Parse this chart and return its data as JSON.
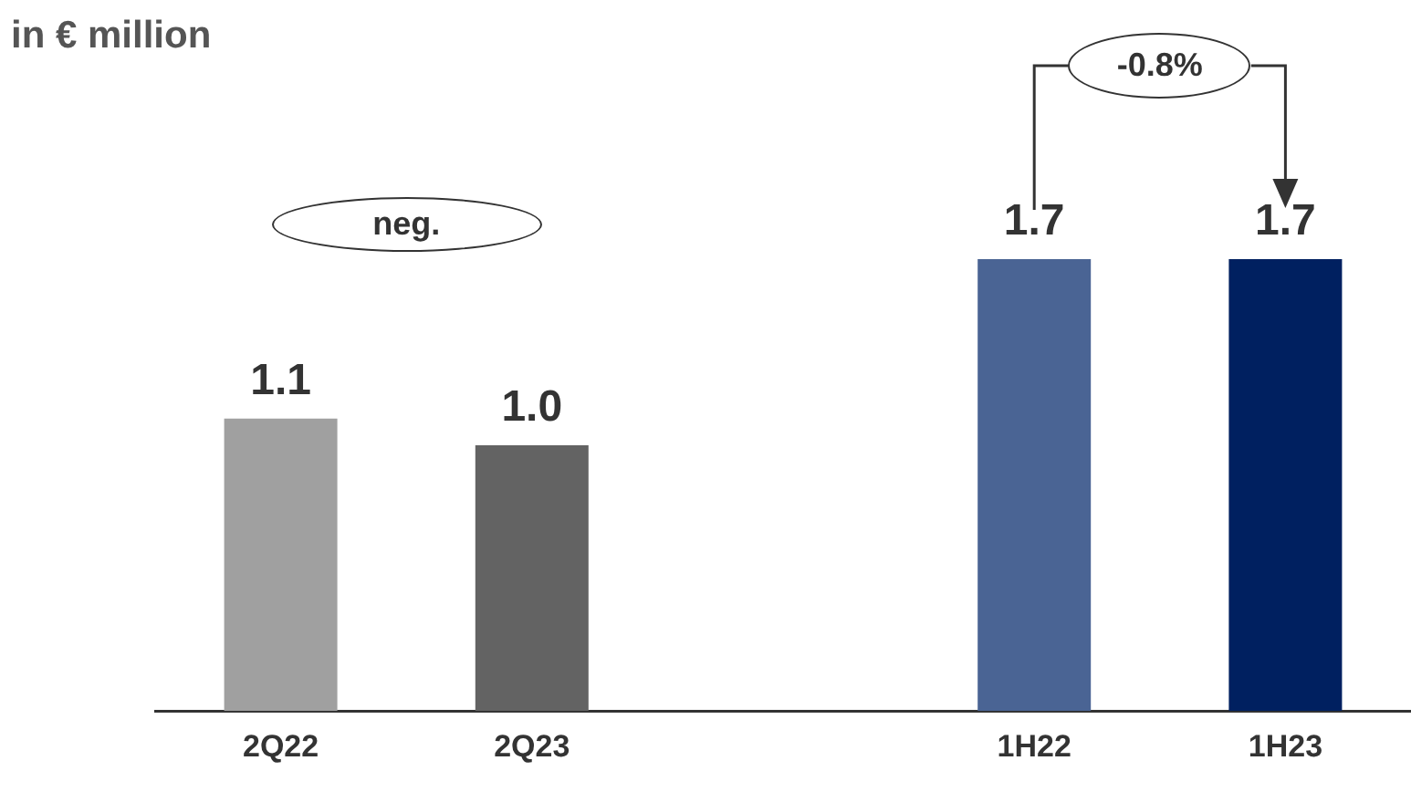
{
  "chart_data": {
    "type": "bar",
    "title": "in € million",
    "categories": [
      "2Q22",
      "2Q23",
      null,
      "1H22",
      "1H23"
    ],
    "values": [
      1.1,
      1.0,
      null,
      1.7,
      1.7
    ],
    "colors": [
      "#a0a0a0",
      "#636363",
      null,
      "#4a6494",
      "#002060"
    ],
    "value_labels": [
      "1.1",
      "1.0",
      null,
      "1.7",
      "1.7"
    ],
    "tick_labels": "x",
    "grid": false,
    "legend": false,
    "annotations": [
      "neg.",
      "-0.8%"
    ]
  }
}
